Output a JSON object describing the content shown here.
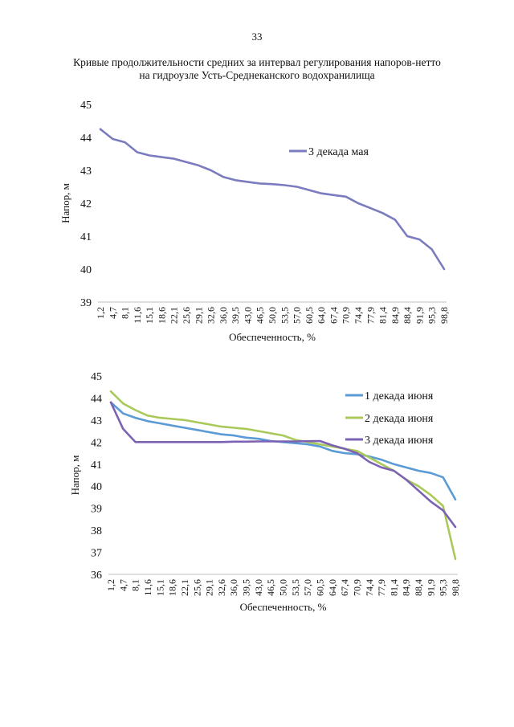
{
  "page_number": "33",
  "title_line1": "Кривые продолжительности средних за интервал регулирования напоров-нетто",
  "title_line2": "на гидроузле Усть-Среднеканского водохранилища",
  "chart_data": [
    {
      "type": "line",
      "ylabel": "Напор, м",
      "xlabel": "Обеспеченность, %",
      "ylim": [
        39,
        45
      ],
      "yticks": [
        39,
        40,
        41,
        42,
        43,
        44,
        45
      ],
      "grid": false,
      "legend_position": "top-right",
      "categories": [
        "1,2",
        "4,7",
        "8,1",
        "11,6",
        "15,1",
        "18,6",
        "22,1",
        "25,6",
        "29,1",
        "32,6",
        "36,0",
        "39,5",
        "43,0",
        "46,5",
        "50,0",
        "53,5",
        "57,0",
        "60,5",
        "64,0",
        "67,4",
        "70,9",
        "74,4",
        "77,9",
        "81,4",
        "84,9",
        "88,4",
        "91,9",
        "95,3",
        "98,8"
      ],
      "series": [
        {
          "name": "3 декада мая",
          "color": "#7b7bbf",
          "values": [
            44.25,
            43.95,
            43.85,
            43.55,
            43.45,
            43.4,
            43.35,
            43.25,
            43.15,
            43.0,
            42.8,
            42.7,
            42.65,
            42.6,
            42.58,
            42.55,
            42.5,
            42.4,
            42.3,
            42.25,
            42.2,
            42.0,
            41.85,
            41.7,
            41.5,
            41.0,
            40.9,
            40.6,
            40.0
          ]
        }
      ]
    },
    {
      "type": "line",
      "ylabel": "Напор, м",
      "xlabel": "Обеспеченность, %",
      "ylim": [
        36,
        45
      ],
      "yticks": [
        36,
        37,
        38,
        39,
        40,
        41,
        42,
        43,
        44,
        45
      ],
      "grid": false,
      "legend_position": "top-right",
      "categories": [
        "1,2",
        "4,7",
        "8,1",
        "11,6",
        "15,1",
        "18,6",
        "22,1",
        "25,6",
        "29,1",
        "32,6",
        "36,0",
        "39,5",
        "43,0",
        "46,5",
        "50,0",
        "53,5",
        "57,0",
        "60,5",
        "64,0",
        "67,4",
        "70,9",
        "74,4",
        "77,9",
        "81,4",
        "84,9",
        "88,4",
        "91,9",
        "95,3",
        "98,8"
      ],
      "series": [
        {
          "name": "1 декада июня",
          "color": "#5b9bd5",
          "values": [
            43.8,
            43.3,
            43.1,
            42.95,
            42.85,
            42.75,
            42.65,
            42.55,
            42.45,
            42.35,
            42.3,
            42.2,
            42.15,
            42.05,
            42.0,
            41.95,
            41.9,
            41.8,
            41.6,
            41.5,
            41.45,
            41.35,
            41.2,
            41.0,
            40.85,
            40.7,
            40.6,
            40.4,
            39.4
          ]
        },
        {
          "name": "2 декада июня",
          "color": "#a9c95a",
          "values": [
            44.3,
            43.75,
            43.45,
            43.2,
            43.1,
            43.05,
            43.0,
            42.9,
            42.8,
            42.7,
            42.65,
            42.6,
            42.5,
            42.4,
            42.3,
            42.1,
            42.0,
            41.9,
            41.8,
            41.7,
            41.6,
            41.3,
            41.0,
            40.7,
            40.3,
            40.0,
            39.6,
            39.1,
            36.7
          ]
        },
        {
          "name": "3 декада июня",
          "color": "#7b62b3",
          "values": [
            43.8,
            42.6,
            42.0,
            42.0,
            42.0,
            42.0,
            42.0,
            42.0,
            42.0,
            42.0,
            42.02,
            42.02,
            42.03,
            42.03,
            42.03,
            42.03,
            42.04,
            42.05,
            41.85,
            41.7,
            41.5,
            41.1,
            40.85,
            40.7,
            40.3,
            39.8,
            39.3,
            38.9,
            38.15
          ]
        }
      ]
    }
  ]
}
